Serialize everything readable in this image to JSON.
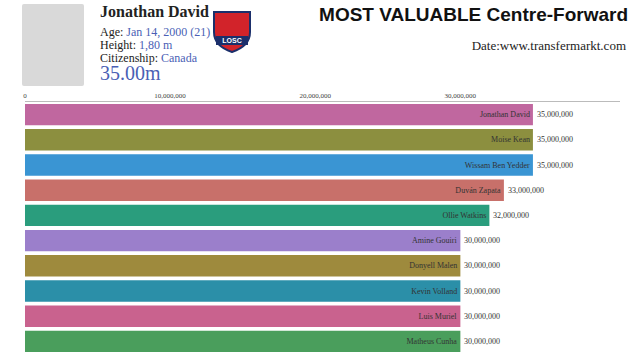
{
  "header": {
    "player": {
      "name": "Jonathan David",
      "details": [
        {
          "label": "Age:",
          "value": "Jan 14, 2000 (21)"
        },
        {
          "label": "Height:",
          "value": "1,80 m"
        },
        {
          "label": "Citizenship:",
          "value": "Canada"
        }
      ],
      "market_value": "35.00m",
      "club_logo_text": "LOSC"
    }
  },
  "chart_data": {
    "type": "bar",
    "orientation": "horizontal",
    "title": "MOST VALUABLE Centre-Forward",
    "subtitle": "Date:www.transfermarkt.com",
    "categories": [
      "Jonathan David",
      "Moise Kean",
      "Wissam Ben Yedder",
      "Duván Zapata",
      "Ollie Watkins",
      "Amine Gouiri",
      "Donyell Malen",
      "Kevin Volland",
      "Luis Muriel",
      "Matheus Cunha"
    ],
    "values": [
      35000000,
      35000000,
      35000000,
      33000000,
      32000000,
      30000000,
      30000000,
      30000000,
      30000000,
      30000000
    ],
    "value_labels": [
      "35,000,000",
      "35,000,000",
      "35,000,000",
      "33,000,000",
      "32,000,000",
      "30,000,000",
      "30,000,000",
      "30,000,000",
      "30,000,000",
      "30,000,000"
    ],
    "colors": [
      "#c0679f",
      "#8c8f3f",
      "#3a95d3",
      "#c8706a",
      "#2a9d7d",
      "#9b7fcb",
      "#9e8a3d",
      "#2b8fa8",
      "#c9628e",
      "#4a9e5c"
    ],
    "xlim": [
      0,
      41000000
    ],
    "xticks": [
      0,
      {
        "value": 10000000,
        "label": "10,000,000"
      },
      {
        "value": 20000000,
        "label": "20,000,000"
      },
      {
        "value": 30000000,
        "label": "30,000,000"
      }
    ],
    "grid": false,
    "data_labels": true,
    "tick_labels": "x"
  }
}
